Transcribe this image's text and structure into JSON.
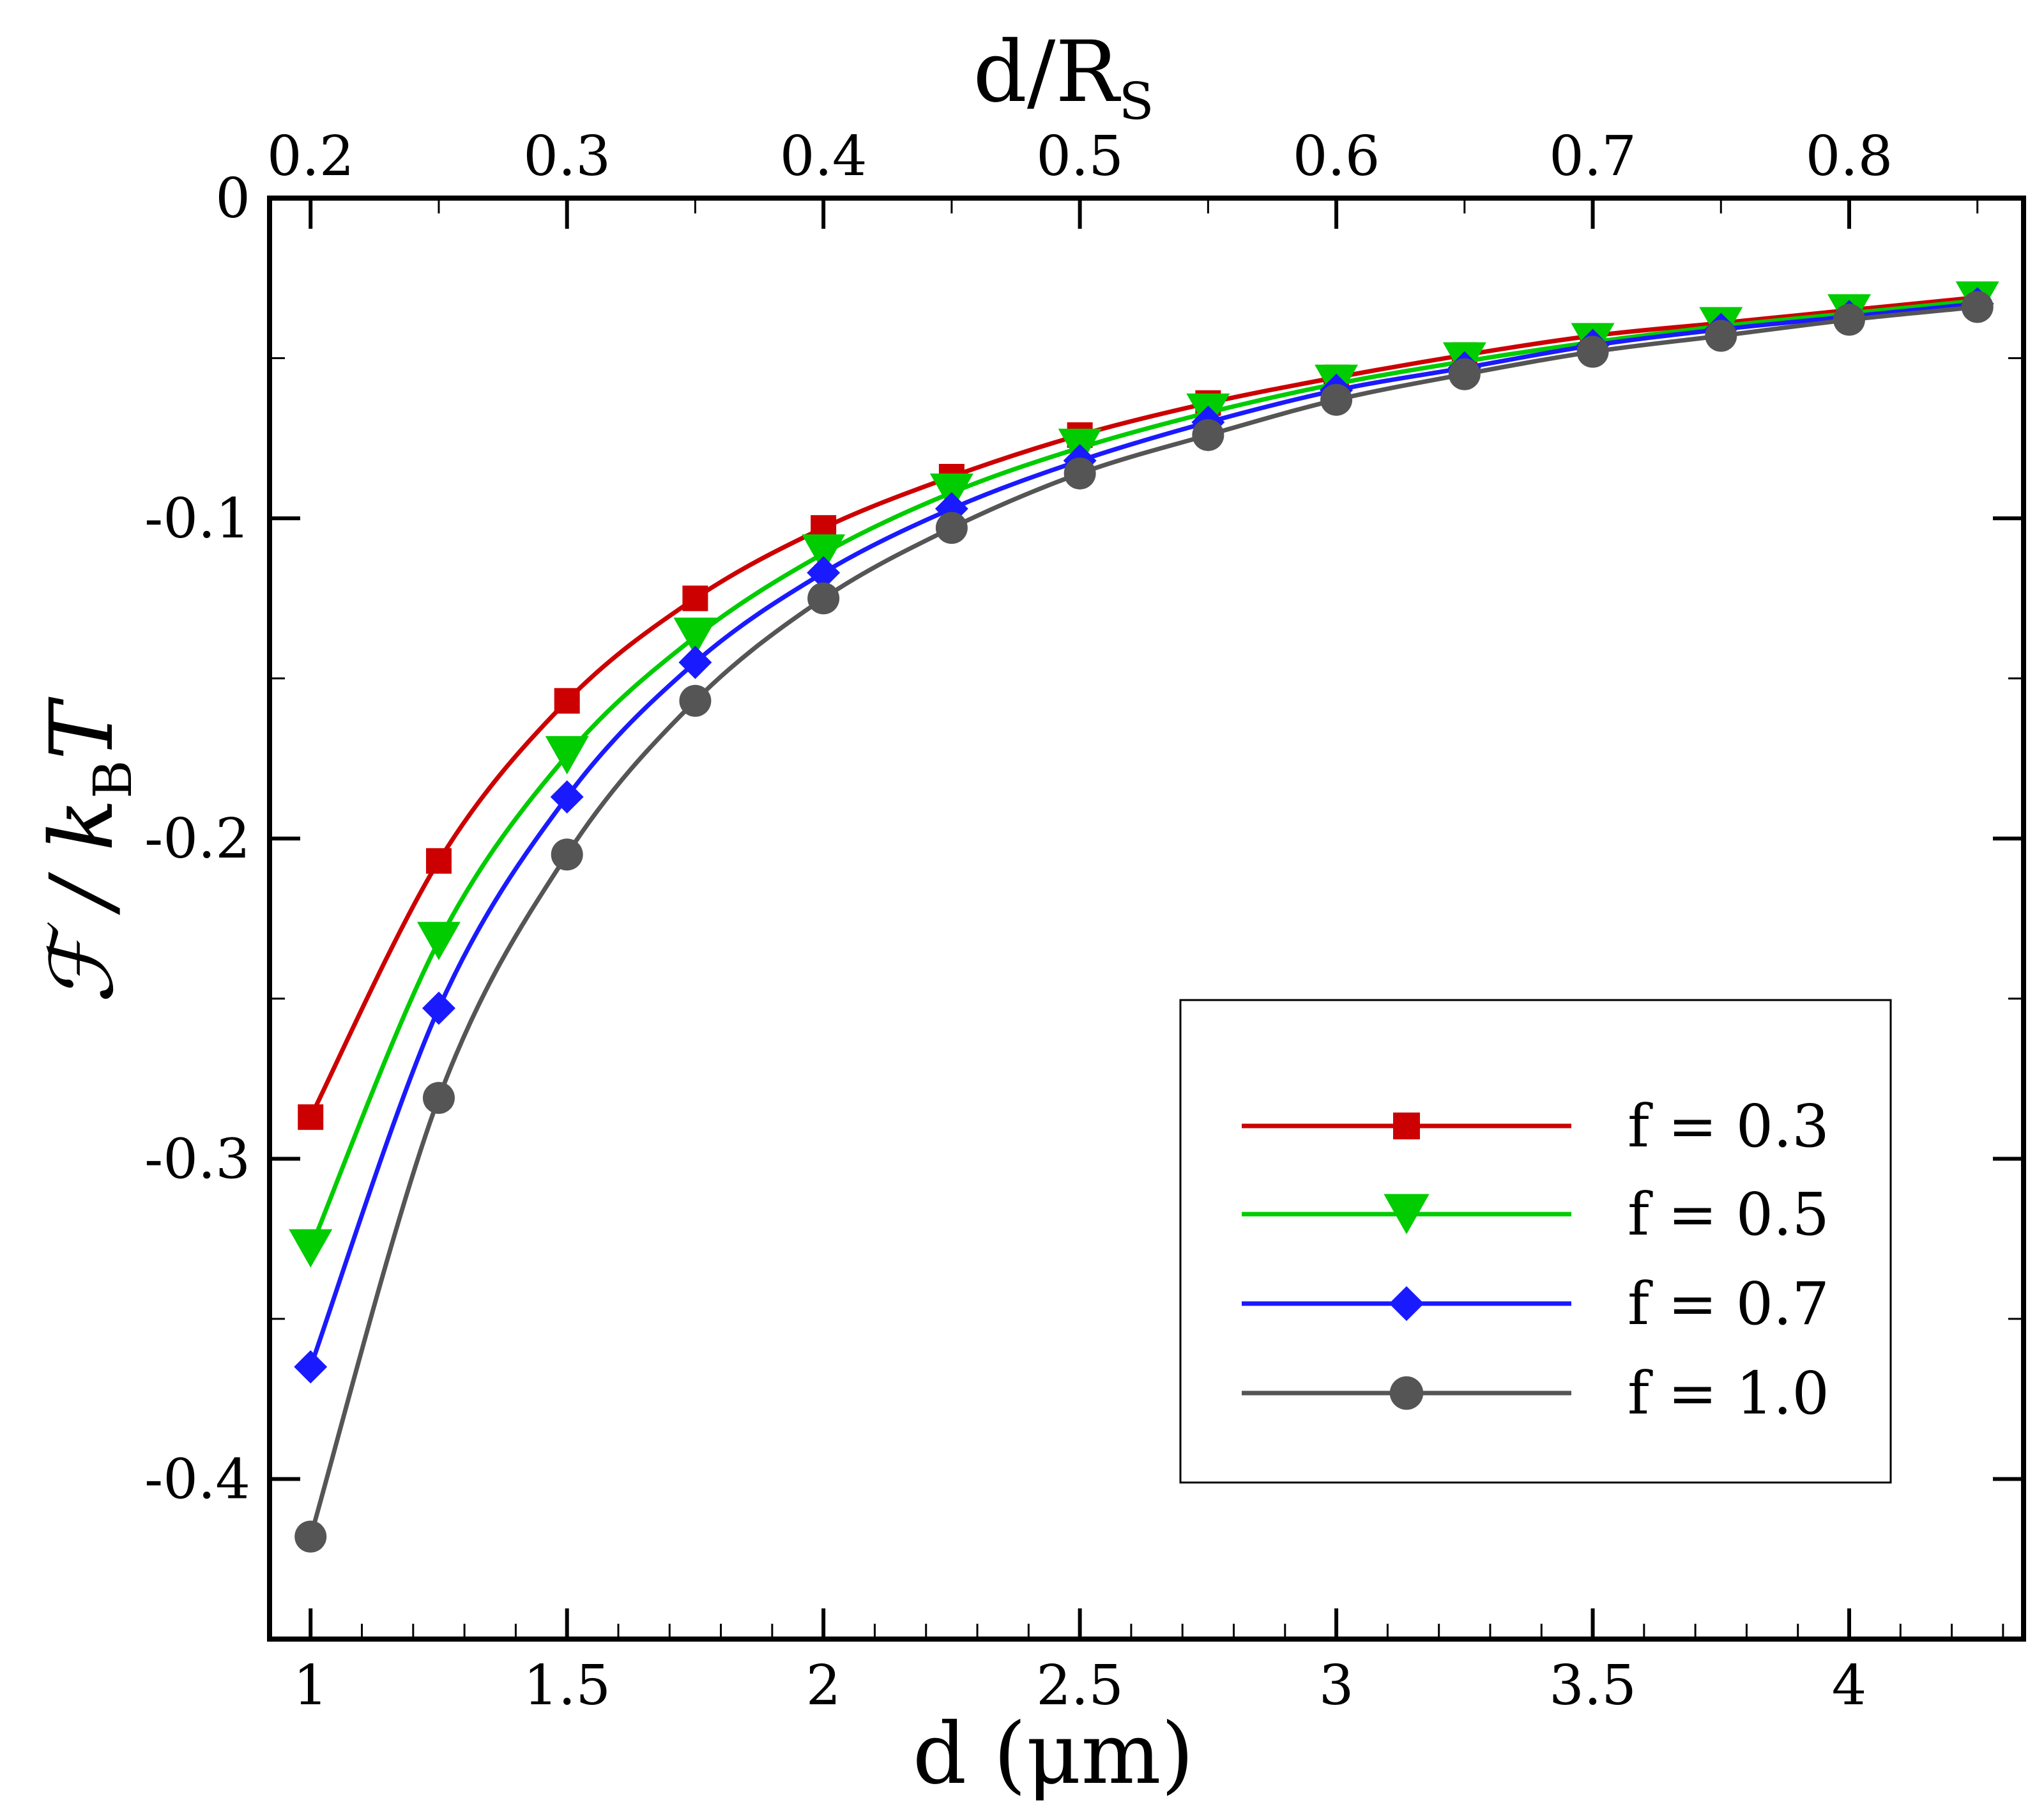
{
  "chart_data": {
    "type": "line",
    "xlabel": "d (μm)",
    "top_xlabel": {
      "main": "d/R",
      "sub": "S"
    },
    "ylabel": {
      "main": "ℱ / k",
      "sub": "B",
      "tail": "T"
    },
    "xlim": [
      0.92,
      4.34
    ],
    "ylim": [
      -0.45,
      0
    ],
    "top_xlim": [
      0.184,
      0.868
    ],
    "x_ticks": [
      1,
      1.5,
      2,
      2.5,
      3,
      3.5,
      4
    ],
    "x_tick_labels": [
      "1",
      "1.5",
      "2",
      "2.5",
      "3",
      "3.5",
      "4"
    ],
    "top_x_ticks": [
      0.2,
      0.3,
      0.4,
      0.5,
      0.6,
      0.7,
      0.8
    ],
    "top_x_tick_labels": [
      "0.2",
      "0.3",
      "0.4",
      "0.5",
      "0.6",
      "0.7",
      "0.8"
    ],
    "y_ticks": [
      0,
      -0.1,
      -0.2,
      -0.3,
      -0.4
    ],
    "y_tick_labels": [
      "0",
      "-0.1",
      "-0.2",
      "-0.3",
      "-0.4"
    ],
    "x": [
      1.0,
      1.25,
      1.5,
      1.75,
      2.0,
      2.25,
      2.5,
      2.75,
      3.0,
      3.25,
      3.5,
      3.75,
      4.0,
      4.25
    ],
    "series": [
      {
        "name": "f = 0.3",
        "color": "#cc0000",
        "marker": "square",
        "values": [
          -0.287,
          -0.207,
          -0.157,
          -0.125,
          -0.103,
          -0.087,
          -0.074,
          -0.064,
          -0.056,
          -0.049,
          -0.043,
          -0.039,
          -0.035,
          -0.031
        ]
      },
      {
        "name": "f = 0.5",
        "color": "#00cc00",
        "marker": "triangle-down",
        "values": [
          -0.328,
          -0.232,
          -0.174,
          -0.137,
          -0.111,
          -0.092,
          -0.078,
          -0.067,
          -0.058,
          -0.051,
          -0.045,
          -0.04,
          -0.036,
          -0.032
        ]
      },
      {
        "name": "f = 0.7",
        "color": "#1a1aff",
        "marker": "diamond",
        "values": [
          -0.365,
          -0.253,
          -0.187,
          -0.145,
          -0.117,
          -0.097,
          -0.082,
          -0.07,
          -0.06,
          -0.053,
          -0.046,
          -0.041,
          -0.037,
          -0.033
        ]
      },
      {
        "name": "f = 1.0",
        "color": "#555555",
        "marker": "circle",
        "values": [
          -0.418,
          -0.281,
          -0.205,
          -0.157,
          -0.125,
          -0.103,
          -0.086,
          -0.074,
          -0.063,
          -0.055,
          -0.048,
          -0.043,
          -0.038,
          -0.034
        ]
      }
    ],
    "grid": false,
    "legend": "bottom-right"
  }
}
